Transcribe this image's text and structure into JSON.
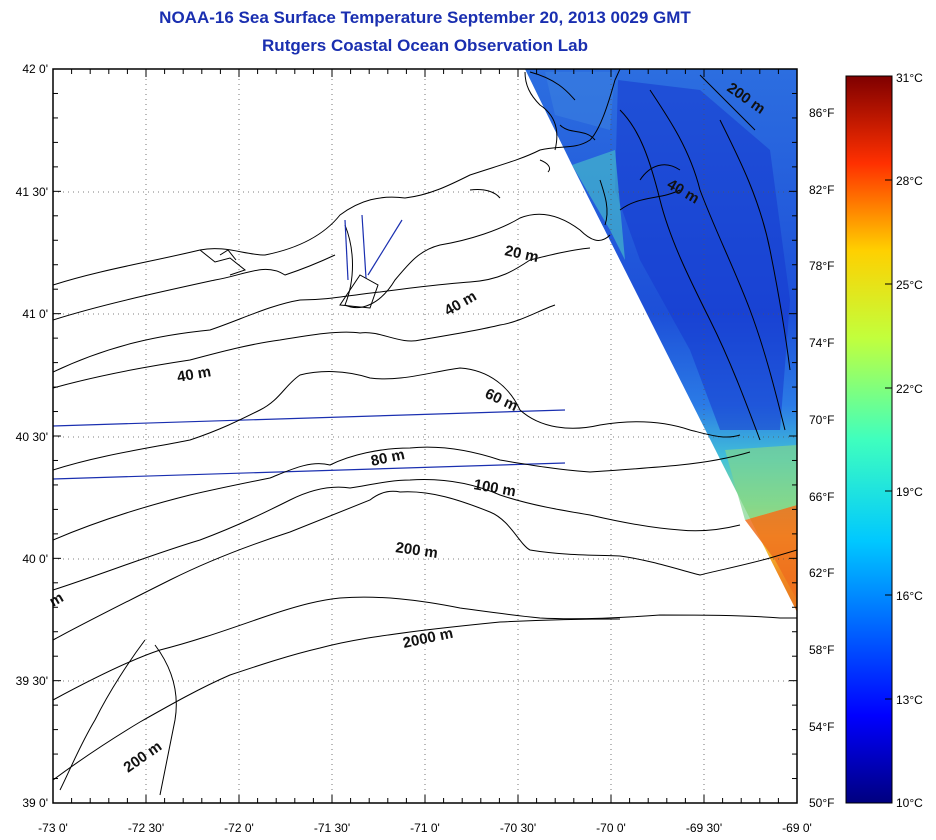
{
  "header": {
    "title_line1": "NOAA-16 Sea Surface Temperature September 20, 2013 0029 GMT",
    "title_line2": "Rutgers Coastal Ocean Observation Lab"
  },
  "axes": {
    "lat_labels": [
      "42 0'",
      "41 30'",
      "41 0'",
      "40 30'",
      "40 0'",
      "39 30'",
      "39 0'"
    ],
    "lon_labels": [
      "-73 0'",
      "-72 30'",
      "-72 0'",
      "-71 30'",
      "-71 0'",
      "-70 30'",
      "-70 0'",
      "-69 30'",
      "-69 0'"
    ],
    "fahrenheit_labels": [
      "86°F",
      "82°F",
      "78°F",
      "74°F",
      "70°F",
      "66°F",
      "62°F",
      "58°F",
      "54°F",
      "50°F"
    ]
  },
  "colorbar": {
    "celsius_labels": [
      "31°C",
      "28°C",
      "25°C",
      "22°C",
      "19°C",
      "16°C",
      "13°C",
      "10°C"
    ],
    "min_c": 10,
    "max_c": 31
  },
  "contours": {
    "labels": [
      "200 m",
      "40 m",
      "20 m",
      "40 m",
      "40 m",
      "60 m",
      "80 m",
      "100 m",
      "200 m",
      "2000 m",
      "200 m",
      "m"
    ]
  }
}
